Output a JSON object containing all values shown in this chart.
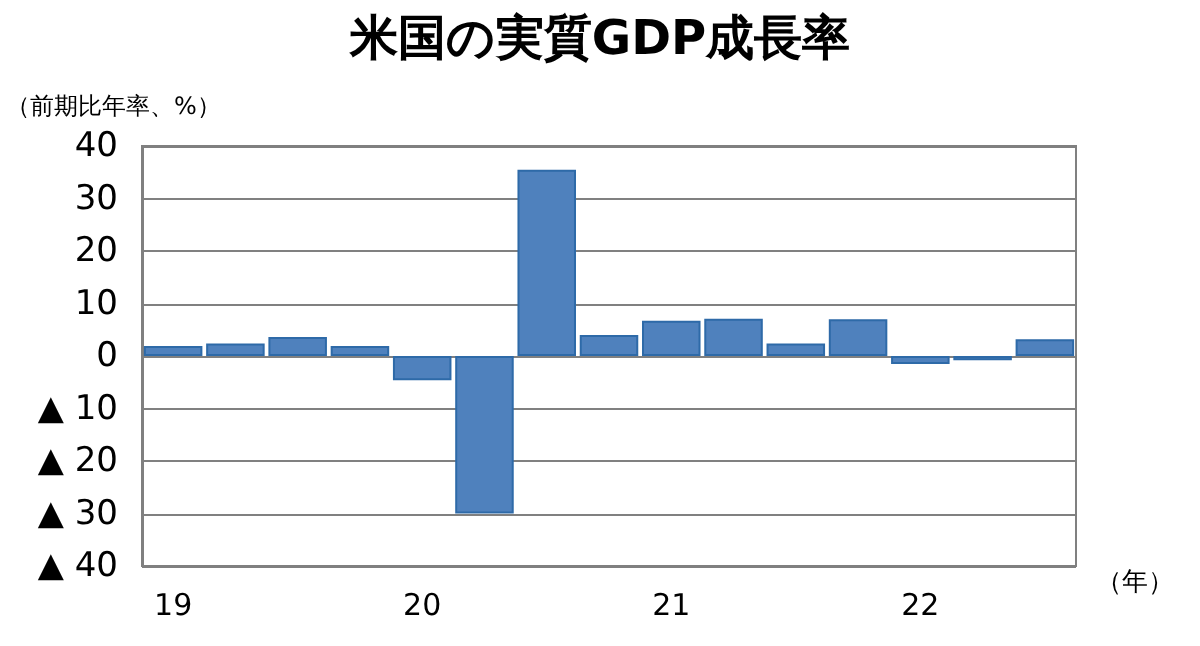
{
  "chart_data": {
    "type": "bar",
    "title": "米国の実質GDP成長率",
    "ylabel": "（前期比年率、%）",
    "xlabel": "（年）",
    "categories": [
      "19",
      null,
      null,
      null,
      "20",
      null,
      null,
      null,
      "21",
      null,
      null,
      null,
      "22",
      null,
      null
    ],
    "values": [
      1.9,
      2.4,
      3.6,
      1.9,
      -4.6,
      -30,
      35.5,
      4.0,
      6.7,
      7.1,
      2.4,
      7.0,
      -1.5,
      -0.8,
      3.2
    ],
    "color": "#4f81bd",
    "ylim": [
      -40,
      40
    ],
    "yticks": [
      {
        "value": -40,
        "label": "▲ 40"
      },
      {
        "value": -30,
        "label": "▲ 30"
      },
      {
        "value": -20,
        "label": "▲ 20"
      },
      {
        "value": -10,
        "label": "▲ 10"
      },
      0,
      10,
      20,
      30,
      40
    ],
    "grid": "y"
  }
}
